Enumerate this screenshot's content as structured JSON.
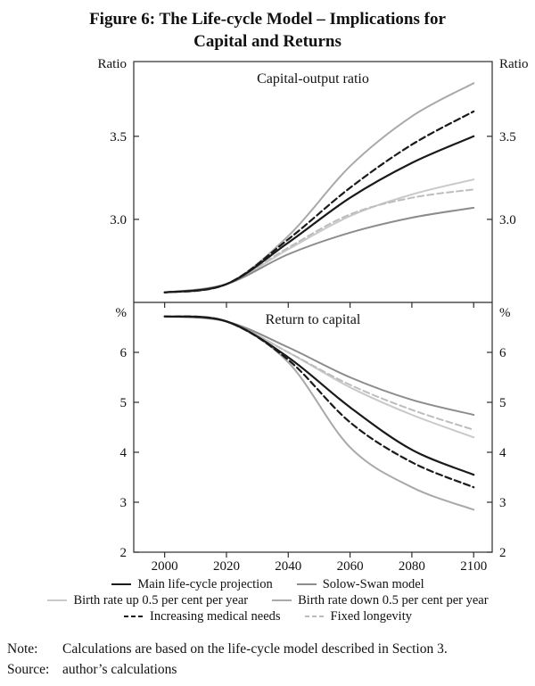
{
  "figure": {
    "title_line1": "Figure 6: The Life-cycle Model – Implications for",
    "title_line2": "Capital and Returns"
  },
  "chart_data": {
    "type": "line",
    "x": [
      2000,
      2020,
      2040,
      2060,
      2080,
      2100
    ],
    "panels": [
      {
        "title": "Capital-output ratio",
        "unit": "Ratio",
        "ylim": [
          2.5,
          3.95
        ],
        "yticks": [
          3.0,
          3.5
        ],
        "ytick_labels": [
          "3.0",
          "3.5"
        ],
        "value_key": "capital_output_ratio"
      },
      {
        "title": "Return to capital",
        "unit": "%",
        "ylim": [
          2,
          7
        ],
        "yticks": [
          2,
          3,
          4,
          5,
          6
        ],
        "ytick_labels": [
          "2",
          "3",
          "4",
          "5",
          "6"
        ],
        "value_key": "return_to_capital"
      }
    ],
    "series": [
      {
        "label": "Main life-cycle projection",
        "color": "#1a1a1a",
        "dash": "",
        "capital_output_ratio": [
          2.56,
          2.61,
          2.86,
          3.13,
          3.34,
          3.5
        ],
        "return_to_capital": [
          6.72,
          6.62,
          5.9,
          4.9,
          4.05,
          3.55
        ]
      },
      {
        "label": "Solow-Swan model",
        "color": "#8c8c8c",
        "dash": "",
        "capital_output_ratio": [
          2.56,
          2.61,
          2.79,
          2.92,
          3.01,
          3.07
        ],
        "return_to_capital": [
          6.72,
          6.62,
          6.1,
          5.5,
          5.05,
          4.75
        ]
      },
      {
        "label": "Birth rate up 0.5 per cent per year",
        "color": "#c9c9c9",
        "dash": "",
        "capital_output_ratio": [
          2.56,
          2.61,
          2.82,
          3.02,
          3.15,
          3.24
        ],
        "return_to_capital": [
          6.72,
          6.62,
          6.0,
          5.3,
          4.75,
          4.3
        ]
      },
      {
        "label": "Birth rate down 0.5 per cent per year",
        "color": "#a9a9a9",
        "dash": "",
        "capital_output_ratio": [
          2.56,
          2.61,
          2.9,
          3.32,
          3.62,
          3.82
        ],
        "return_to_capital": [
          6.72,
          6.62,
          5.8,
          4.1,
          3.3,
          2.85
        ]
      },
      {
        "label": "Increasing medical needs",
        "color": "#1a1a1a",
        "dash": "7,4",
        "capital_output_ratio": [
          2.56,
          2.61,
          2.88,
          3.19,
          3.45,
          3.65
        ],
        "return_to_capital": [
          6.72,
          6.62,
          5.85,
          4.6,
          3.8,
          3.3
        ]
      },
      {
        "label": "Fixed longevity",
        "color": "#bdbdbd",
        "dash": "7,4",
        "capital_output_ratio": [
          2.56,
          2.61,
          2.83,
          3.03,
          3.13,
          3.18
        ],
        "return_to_capital": [
          6.72,
          6.62,
          6.0,
          5.35,
          4.85,
          4.45
        ]
      }
    ]
  },
  "notes": {
    "note_label": "Note:",
    "note_text": "Calculations are based on the life-cycle model described in Section 3.",
    "source_label": "Source:",
    "source_text": "author’s calculations"
  }
}
